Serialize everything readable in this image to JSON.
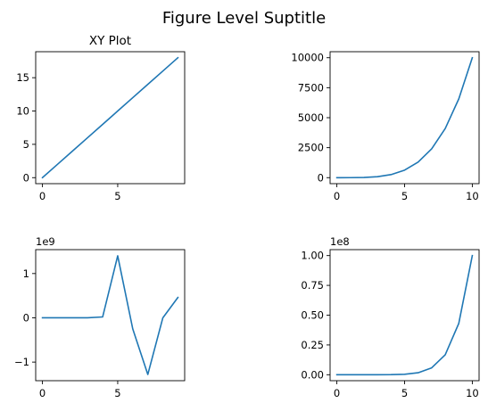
{
  "figure": {
    "suptitle": "Figure Level Suptitle",
    "line_color": "#1f77b4"
  },
  "chart_data": [
    {
      "type": "line",
      "title": "XY Plot",
      "xlabel": "",
      "ylabel": "",
      "x": [
        0,
        1,
        2,
        3,
        4,
        5,
        6,
        7,
        8,
        9
      ],
      "series": [
        {
          "values": [
            0,
            2,
            4,
            6,
            8,
            10,
            12,
            14,
            16,
            18
          ]
        }
      ],
      "xlim": [
        -0.45,
        9.45
      ],
      "ylim": [
        -0.9,
        18.9
      ],
      "xticks": [
        0,
        5
      ],
      "xtick_labels": [
        "0",
        "5"
      ],
      "yticks": [
        0,
        5,
        10,
        15
      ],
      "ytick_labels": [
        "0",
        "5",
        "10",
        "15"
      ],
      "offset_label": "",
      "grid": false
    },
    {
      "type": "line",
      "title": "",
      "xlabel": "",
      "ylabel": "",
      "x": [
        0,
        1,
        2,
        3,
        4,
        5,
        6,
        7,
        8,
        9,
        10
      ],
      "series": [
        {
          "values": [
            0,
            1,
            16,
            81,
            256,
            625,
            1296,
            2401,
            4096,
            6561,
            10000
          ]
        }
      ],
      "xlim": [
        -0.5,
        10.5
      ],
      "ylim": [
        -500,
        10500
      ],
      "xticks": [
        0,
        5,
        10
      ],
      "xtick_labels": [
        "0",
        "5",
        "10"
      ],
      "yticks": [
        0,
        2500,
        5000,
        7500,
        10000
      ],
      "ytick_labels": [
        "0",
        "2500",
        "5000",
        "7500",
        "10000"
      ],
      "offset_label": "",
      "grid": false
    },
    {
      "type": "line",
      "title": "",
      "xlabel": "",
      "ylabel": "",
      "x": [
        0,
        1,
        2,
        3,
        4,
        5,
        6,
        7,
        8,
        9
      ],
      "series": [
        {
          "values": [
            0,
            0,
            0,
            0,
            20000000,
            1400000000,
            -250000000,
            -1280000000,
            0,
            460000000
          ]
        }
      ],
      "xlim": [
        -0.45,
        9.45
      ],
      "ylim": [
        -1420000000,
        1540000000
      ],
      "xticks": [
        0,
        5
      ],
      "xtick_labels": [
        "0",
        "5"
      ],
      "yticks": [
        -1000000000,
        0,
        1000000000
      ],
      "ytick_labels": [
        "−1",
        "0",
        "1"
      ],
      "offset_label": "1e9",
      "grid": false
    },
    {
      "type": "line",
      "title": "",
      "xlabel": "",
      "ylabel": "",
      "x": [
        0,
        1,
        2,
        3,
        4,
        5,
        6,
        7,
        8,
        9,
        10
      ],
      "series": [
        {
          "values": [
            0,
            1,
            256,
            6561,
            65536,
            390625,
            1679616,
            5764801,
            16777216,
            43046721,
            100000000
          ]
        }
      ],
      "xlim": [
        -0.5,
        10.5
      ],
      "ylim": [
        -5000000,
        105000000
      ],
      "xticks": [
        0,
        5,
        10
      ],
      "xtick_labels": [
        "0",
        "5",
        "10"
      ],
      "yticks": [
        0,
        25000000,
        50000000,
        75000000,
        100000000
      ],
      "ytick_labels": [
        "0.00",
        "0.25",
        "0.50",
        "0.75",
        "1.00"
      ],
      "offset_label": "1e8",
      "grid": false
    }
  ]
}
